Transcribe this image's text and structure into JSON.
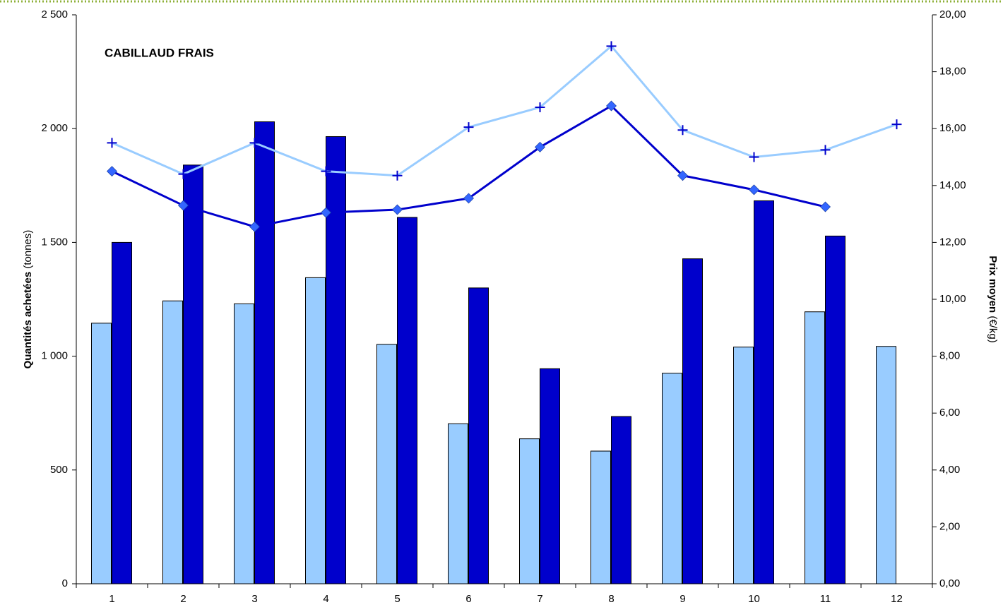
{
  "chart_data": {
    "type": "bar_line",
    "title": "CABILLAUD FRAIS",
    "ylabel": "Quantités achetées",
    "ylabel_unit": "(tonnes)",
    "y2label": "Prix moyen",
    "y2label_unit": "(€/kg)",
    "categories": [
      "1",
      "2",
      "3",
      "4",
      "5",
      "6",
      "7",
      "8",
      "9",
      "10",
      "11",
      "12"
    ],
    "series": [
      {
        "kind": "bar",
        "color": "#99ccff",
        "values": [
          1145,
          1243,
          1230,
          1345,
          1052,
          703,
          637,
          583,
          925,
          1040,
          1195,
          1043
        ]
      },
      {
        "kind": "bar",
        "color": "#0000cc",
        "values": [
          1500,
          1840,
          2030,
          1965,
          1610,
          1300,
          945,
          735,
          1428,
          1683,
          1528,
          null
        ]
      },
      {
        "kind": "line",
        "axis": "y2",
        "color": "#99ccff",
        "marker": "cross",
        "marker_color": "#0000cc",
        "values": [
          15.5,
          14.4,
          15.5,
          14.5,
          14.35,
          16.05,
          16.75,
          18.9,
          15.95,
          15.0,
          15.25,
          16.15
        ]
      },
      {
        "kind": "line",
        "axis": "y2",
        "color": "#0000cc",
        "marker": "diamond",
        "marker_color": "#3366ff",
        "values": [
          14.5,
          13.3,
          12.55,
          13.05,
          13.15,
          13.55,
          15.35,
          16.8,
          14.35,
          13.85,
          13.25,
          null
        ]
      }
    ],
    "ylim": [
      0,
      2500
    ],
    "yticks": [
      0,
      500,
      {
        "value": 1000,
        "label": "1 000"
      },
      {
        "value": 1500,
        "label": "1 500"
      },
      {
        "value": 2000,
        "label": "2 000"
      },
      {
        "value": 2500,
        "label": "2 500"
      }
    ],
    "y2lim": [
      0,
      20
    ],
    "y2ticks": [
      {
        "value": 0,
        "label": "0,00"
      },
      {
        "value": 2,
        "label": "2,00"
      },
      {
        "value": 4,
        "label": "4,00"
      },
      {
        "value": 6,
        "label": "6,00"
      },
      {
        "value": 8,
        "label": "8,00"
      },
      {
        "value": 10,
        "label": "10,00"
      },
      {
        "value": 12,
        "label": "12,00"
      },
      {
        "value": 14,
        "label": "14,00"
      },
      {
        "value": 16,
        "label": "16,00"
      },
      {
        "value": 18,
        "label": "18,00"
      },
      {
        "value": 20,
        "label": "20,00"
      }
    ]
  }
}
